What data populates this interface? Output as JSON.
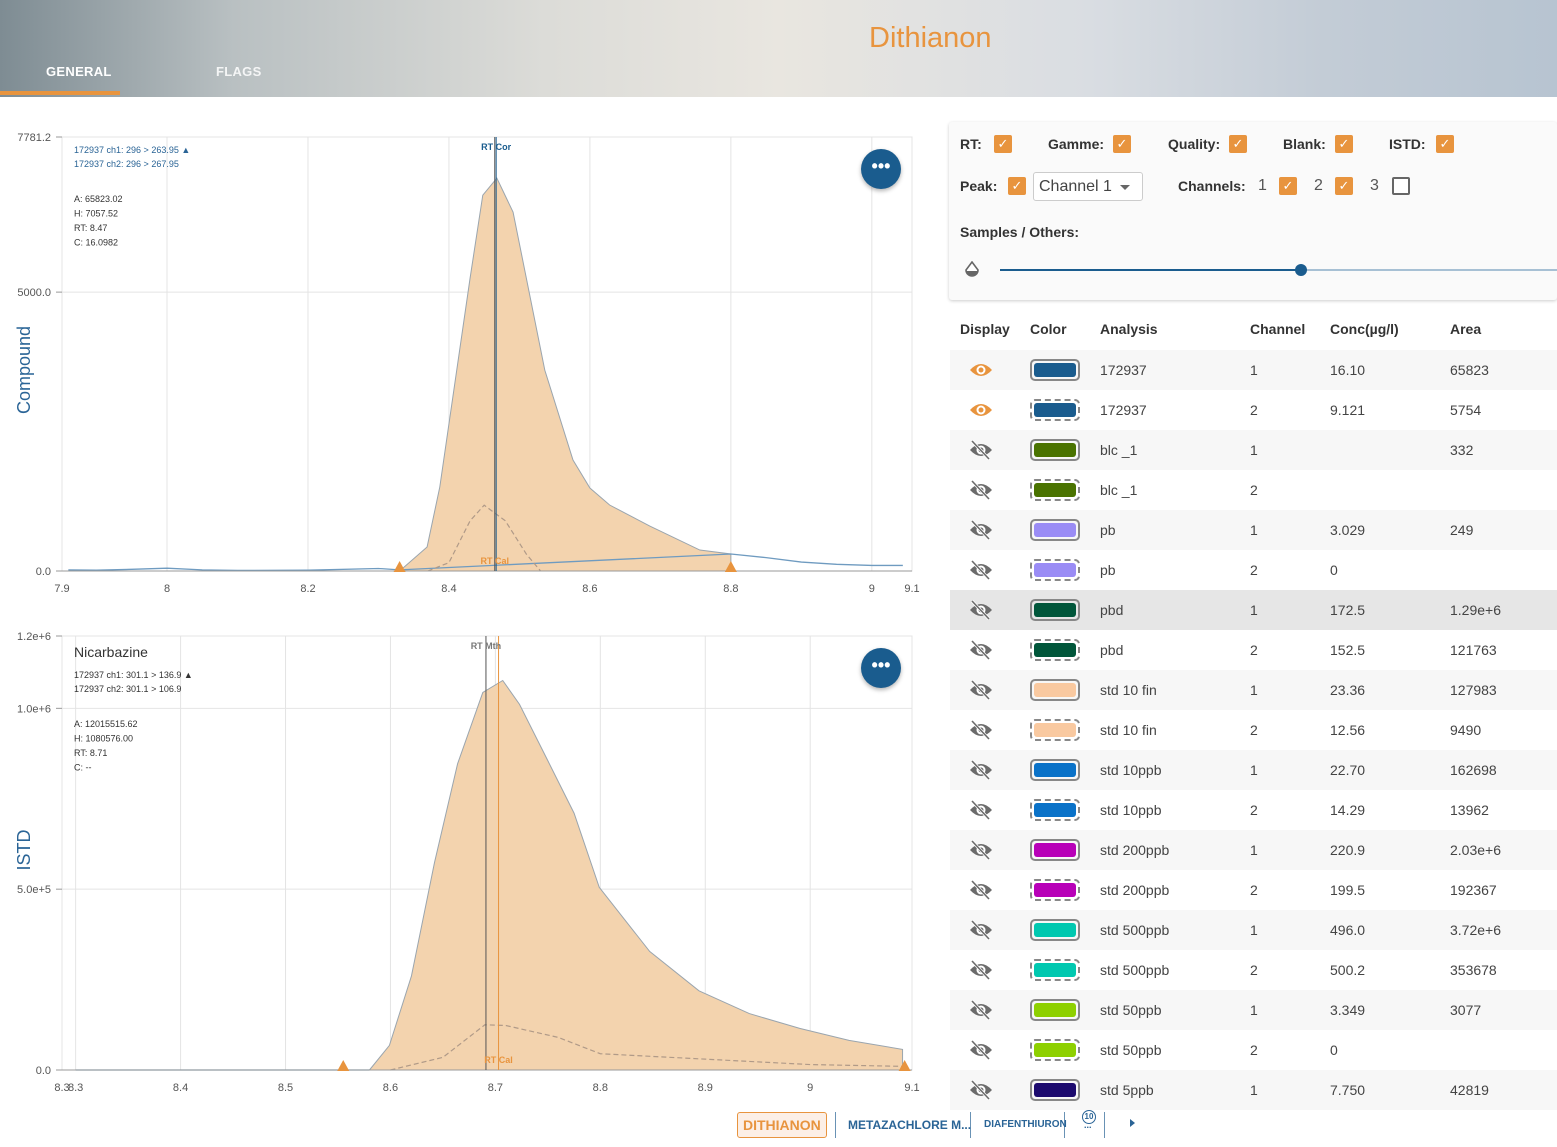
{
  "header": {
    "title": "Dithianon",
    "tabs": [
      {
        "label": "GENERAL",
        "active": true
      },
      {
        "label": "FLAGS",
        "active": false
      }
    ]
  },
  "colors": {
    "accent": "#e8943e",
    "primary": "#1a5c8e",
    "area_fill": "#f3d3ae"
  },
  "charts": [
    {
      "axis_label": "Compound",
      "legend": [
        "172937 ch1: 296 > 263.95 ▲",
        "172937 ch2: 296 > 267.95"
      ],
      "stats": [
        "A: 65823.02",
        "H: 7057.52",
        "RT: 8.47",
        "C: 16.0982"
      ],
      "rt_labels": [
        "RT Cor",
        "RT Cal"
      ],
      "menu_label": "•••"
    },
    {
      "compound": "Nicarbazine",
      "axis_label": "ISTD",
      "legend": [
        "172937 ch1: 301.1 > 136.9 ▲",
        "172937 ch2: 301.1 > 106.9"
      ],
      "stats": [
        "A: 12015515.62",
        "H: 1080576.00",
        "RT: 8.71",
        "C: --"
      ],
      "rt_labels": [
        "RT Mth",
        "RT Cal"
      ],
      "menu_label": "•••"
    }
  ],
  "chart_data": [
    {
      "type": "area",
      "xlim": [
        7.851,
        9.057
      ],
      "ylim": [
        0,
        7781.2
      ],
      "grid": true,
      "x_ticks": [
        8.0,
        8.2,
        8.4,
        8.6,
        8.8,
        9.0
      ],
      "x_edge_labels": [
        "7.9",
        "9.1"
      ],
      "y_ticks": [
        "0.0",
        "5000.0",
        "7781.2"
      ],
      "y_tick_values": [
        0,
        5000,
        7781.2
      ],
      "peak": {
        "x": [
          8.33,
          8.369,
          8.387,
          8.43,
          8.448,
          8.468,
          8.491,
          8.536,
          8.576,
          8.6,
          8.628,
          8.685,
          8.756,
          8.8
        ],
        "y": [
          0,
          430,
          1505,
          5251,
          6738,
          7043,
          6434,
          3602,
          1989,
          1487,
          1183,
          806,
          376,
          305
        ]
      },
      "trace_ch1": {
        "x": [
          7.86,
          7.9,
          7.95,
          8.0,
          8.05,
          8.1,
          8.2,
          8.3,
          8.33,
          8.8,
          8.85,
          8.9,
          8.95,
          9.0,
          9.044
        ],
        "y": [
          20,
          15,
          30,
          50,
          20,
          10,
          15,
          45,
          20,
          305,
          240,
          160,
          120,
          100,
          100
        ]
      },
      "trace_ch2": {
        "x": [
          8.37,
          8.4,
          8.43,
          8.45,
          8.48,
          8.51,
          8.53
        ],
        "y": [
          0,
          150,
          900,
          1180,
          900,
          300,
          0
        ]
      },
      "markers": [
        8.33,
        8.8
      ],
      "rt_lines": [
        8.467,
        8.465
      ]
    },
    {
      "type": "area",
      "xlim": [
        8.287,
        9.097
      ],
      "ylim": [
        0,
        1200000
      ],
      "grid": true,
      "x_ticks": [
        8.3,
        8.4,
        8.5,
        8.6,
        8.7,
        8.8,
        8.9,
        9.0
      ],
      "x_edge_labels": [
        "8.3",
        "9.1"
      ],
      "y_ticks": [
        "0.0",
        "5.0e+5",
        "1.0e+6",
        "1.2e+6"
      ],
      "y_tick_values": [
        0,
        500000,
        1000000,
        1200000
      ],
      "peak": {
        "x": [
          8.58,
          8.599,
          8.62,
          8.642,
          8.664,
          8.688,
          8.707,
          8.723,
          8.75,
          8.775,
          8.799,
          8.847,
          8.894,
          8.942,
          8.99,
          9.037,
          9.088
        ],
        "y": [
          0,
          68000,
          260000,
          574000,
          847000,
          1044000,
          1077000,
          1011000,
          855000,
          710000,
          505000,
          328000,
          219000,
          156000,
          115000,
          82000,
          57000
        ]
      },
      "trace_ch1": {
        "x": [
          8.3,
          8.4,
          8.5,
          8.58
        ],
        "y": [
          0,
          0,
          0,
          0
        ]
      },
      "trace_ch2": {
        "x": [
          8.6,
          8.65,
          8.69,
          8.71,
          8.76,
          8.8,
          8.9,
          9.0,
          9.09
        ],
        "y": [
          0,
          35000,
          125000,
          123000,
          90000,
          45000,
          30000,
          15000,
          10000
        ]
      },
      "markers": [
        8.555,
        9.09
      ],
      "rt_lines": [
        8.691,
        8.703
      ]
    }
  ],
  "controls": {
    "rt": {
      "label": "RT:",
      "checked": true
    },
    "gamme": {
      "label": "Gamme:",
      "checked": true
    },
    "quality": {
      "label": "Quality:",
      "checked": true
    },
    "blank": {
      "label": "Blank:",
      "checked": true
    },
    "istd": {
      "label": "ISTD:",
      "checked": true
    },
    "peak": {
      "label": "Peak:",
      "checked": true
    },
    "peak_channel": "Channel 1",
    "channels_label": "Channels:",
    "channels": [
      {
        "n": "1",
        "checked": true
      },
      {
        "n": "2",
        "checked": true
      },
      {
        "n": "3",
        "checked": false
      }
    ],
    "samples_label": "Samples / Others:",
    "slider_value": 0.54
  },
  "table": {
    "headers": [
      "Display",
      "Color",
      "Analysis",
      "Channel",
      "Conc(µg/l)",
      "Area"
    ],
    "rows": [
      {
        "visible": true,
        "color": "#1a5c8e",
        "analysis": "172937",
        "channel": "1",
        "conc": "16.10",
        "area": "65823"
      },
      {
        "visible": true,
        "color": "#1a5c8e",
        "analysis": "172937",
        "channel": "2",
        "conc": "9.121",
        "area": "5754"
      },
      {
        "visible": false,
        "color": "#4a7300",
        "analysis": "blc _1",
        "channel": "1",
        "conc": "",
        "area": "332"
      },
      {
        "visible": false,
        "color": "#4a7300",
        "analysis": "blc _1",
        "channel": "2",
        "conc": "",
        "area": ""
      },
      {
        "visible": false,
        "color": "#9a8cf5",
        "analysis": "pb",
        "channel": "1",
        "conc": "3.029",
        "area": "249"
      },
      {
        "visible": false,
        "color": "#9a8cf5",
        "analysis": "pb",
        "channel": "2",
        "conc": "0",
        "area": ""
      },
      {
        "visible": false,
        "color": "#00563a",
        "analysis": "pbd",
        "channel": "1",
        "conc": "172.5",
        "area": "1.29e+6",
        "highlighted": true
      },
      {
        "visible": false,
        "color": "#00563a",
        "analysis": "pbd",
        "channel": "2",
        "conc": "152.5",
        "area": "121763"
      },
      {
        "visible": false,
        "color": "#f9c9a0",
        "analysis": "std 10 fin",
        "channel": "1",
        "conc": "23.36",
        "area": "127983"
      },
      {
        "visible": false,
        "color": "#f9c9a0",
        "analysis": "std 10 fin",
        "channel": "2",
        "conc": "12.56",
        "area": "9490"
      },
      {
        "visible": false,
        "color": "#0a72c8",
        "analysis": "std 10ppb",
        "channel": "1",
        "conc": "22.70",
        "area": "162698"
      },
      {
        "visible": false,
        "color": "#0a72c8",
        "analysis": "std 10ppb",
        "channel": "2",
        "conc": "14.29",
        "area": "13962"
      },
      {
        "visible": false,
        "color": "#b800b8",
        "analysis": "std 200ppb",
        "channel": "1",
        "conc": "220.9",
        "area": "2.03e+6"
      },
      {
        "visible": false,
        "color": "#b800b8",
        "analysis": "std 200ppb",
        "channel": "2",
        "conc": "199.5",
        "area": "192367"
      },
      {
        "visible": false,
        "color": "#00c8b0",
        "analysis": "std 500ppb",
        "channel": "1",
        "conc": "496.0",
        "area": "3.72e+6"
      },
      {
        "visible": false,
        "color": "#00c8b0",
        "analysis": "std 500ppb",
        "channel": "2",
        "conc": "500.2",
        "area": "353678"
      },
      {
        "visible": false,
        "color": "#8ed000",
        "analysis": "std 50ppb",
        "channel": "1",
        "conc": "3.349",
        "area": "3077"
      },
      {
        "visible": false,
        "color": "#8ed000",
        "analysis": "std 50ppb",
        "channel": "2",
        "conc": "0",
        "area": ""
      },
      {
        "visible": false,
        "color": "#1c0a6e",
        "analysis": "std 5ppb",
        "channel": "1",
        "conc": "7.750",
        "area": "42819"
      }
    ]
  },
  "bottom_tabs": {
    "items": [
      "DITHIANON",
      "METAZACHLORE M...",
      "DIAFENTHIURON"
    ],
    "more_count": "10",
    "more_label": "..."
  }
}
